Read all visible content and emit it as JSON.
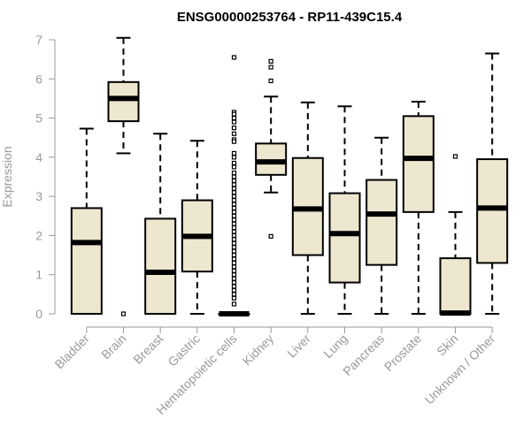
{
  "chart_data": {
    "type": "boxplot",
    "title": "ENSG00000253764 - RP11-439C15.4",
    "xlabel": "",
    "ylabel": "Expression",
    "ylim": [
      0,
      7
    ],
    "yticks": [
      0,
      1,
      2,
      3,
      4,
      5,
      6,
      7
    ],
    "box_fill": "#ede7d0",
    "box_stroke": "#000000",
    "axis_color": "#999999",
    "categories": [
      "Bladder",
      "Brain",
      "Breast",
      "Gastric",
      "Hematopoietic cells",
      "Kidney",
      "Liver",
      "Lung",
      "Pancreas",
      "Prostate",
      "Skin",
      "Unknown / Other"
    ],
    "boxes": [
      {
        "name": "Bladder",
        "whisker_low": 0,
        "q1": 0,
        "median": 1.82,
        "q3": 2.7,
        "whisker_high": 4.73,
        "outliers": []
      },
      {
        "name": "Brain",
        "whisker_low": 4.1,
        "q1": 4.92,
        "median": 5.5,
        "q3": 5.92,
        "whisker_high": 7.05,
        "outliers": [
          0
        ]
      },
      {
        "name": "Breast",
        "whisker_low": 0,
        "q1": 0,
        "median": 1.06,
        "q3": 2.43,
        "whisker_high": 4.6,
        "outliers": []
      },
      {
        "name": "Gastric",
        "whisker_low": 0,
        "q1": 1.08,
        "median": 1.98,
        "q3": 2.9,
        "whisker_high": 4.42,
        "outliers": []
      },
      {
        "name": "Hematopoietic cells",
        "whisker_low": 0,
        "q1": 0,
        "median": 0,
        "q3": 0,
        "whisker_high": 0,
        "outliers": [
          6.55,
          5.15,
          5.1,
          5.0,
          4.9,
          4.75,
          4.6,
          4.45,
          4.4,
          4.1,
          4.0,
          3.85,
          3.75,
          3.6,
          3.5,
          3.4,
          3.3,
          3.2,
          3.1,
          3.0,
          2.9,
          2.8,
          2.7,
          2.6,
          2.5,
          2.4,
          2.3,
          2.2,
          2.1,
          2.0,
          1.9,
          1.8,
          1.7,
          1.6,
          1.5,
          1.4,
          1.3,
          1.2,
          1.1,
          1.0,
          0.9,
          0.8,
          0.7,
          0.6,
          0.5,
          0.4,
          0.25
        ]
      },
      {
        "name": "Kidney",
        "whisker_low": 3.1,
        "q1": 3.55,
        "median": 3.88,
        "q3": 4.35,
        "whisker_high": 5.55,
        "outliers": [
          6.45,
          6.3,
          5.95,
          1.98
        ]
      },
      {
        "name": "Liver",
        "whisker_low": 0,
        "q1": 1.5,
        "median": 2.68,
        "q3": 3.98,
        "whisker_high": 5.4,
        "outliers": []
      },
      {
        "name": "Lung",
        "whisker_low": 0,
        "q1": 0.8,
        "median": 2.05,
        "q3": 3.08,
        "whisker_high": 5.3,
        "outliers": []
      },
      {
        "name": "Pancreas",
        "whisker_low": 0,
        "q1": 1.25,
        "median": 2.55,
        "q3": 3.42,
        "whisker_high": 4.5,
        "outliers": []
      },
      {
        "name": "Prostate",
        "whisker_low": 0,
        "q1": 2.6,
        "median": 3.97,
        "q3": 5.05,
        "whisker_high": 5.42,
        "outliers": []
      },
      {
        "name": "Skin",
        "whisker_low": 0,
        "q1": 0,
        "median": 0.02,
        "q3": 1.42,
        "whisker_high": 2.6,
        "outliers": [
          4.02
        ]
      },
      {
        "name": "Unknown / Other",
        "whisker_low": 0,
        "q1": 1.3,
        "median": 2.7,
        "q3": 3.95,
        "whisker_high": 6.65,
        "outliers": []
      }
    ]
  }
}
